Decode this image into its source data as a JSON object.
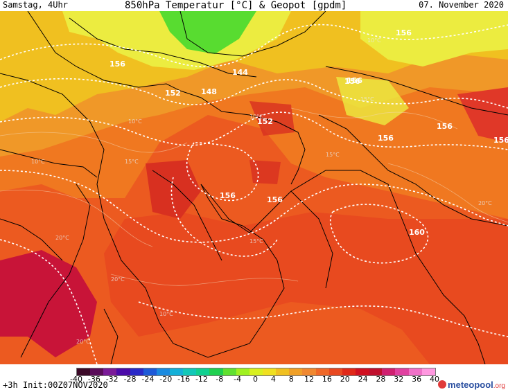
{
  "header": {
    "left": "Samstag, 4Uhr",
    "title": "850hPa Temperatur [°C] & Geopot [gpdm]",
    "right": "07. November 2020"
  },
  "footer": {
    "left": "+3h  Init:00Z07NOV2020",
    "brand": "meteopool",
    "brand_suffix": ".org",
    "brand_icon": "meteopool-logo-icon"
  },
  "scale": {
    "labels": [
      "-40",
      "-36",
      "-32",
      "-28",
      "-24",
      "-20",
      "-16",
      "-12",
      "-8",
      "-4",
      "0",
      "4",
      "8",
      "12",
      "16",
      "20",
      "24",
      "28",
      "32",
      "36",
      "40"
    ],
    "colors": [
      "#3c0a28",
      "#5a0c5a",
      "#7a1a98",
      "#4b0aa8",
      "#2a2ac8",
      "#1e5ad8",
      "#1a8ae0",
      "#14b0d8",
      "#12c8b8",
      "#10d090",
      "#20d050",
      "#60e030",
      "#a0f020",
      "#d8f020",
      "#f0e020",
      "#f0c020",
      "#f0a028",
      "#f08830",
      "#f06828",
      "#e84820",
      "#e02818",
      "#d01020",
      "#c0102e",
      "#d02070",
      "#e040a0",
      "#f070c8",
      "#ff98e0"
    ]
  },
  "map": {
    "colors": {
      "cool_green": "#58dc30",
      "yellow": "#ecec40",
      "yellow_orange": "#f0c020",
      "orange": "#f09828",
      "dark_orange": "#f07820",
      "red_orange": "#ec5a20",
      "red": "#e03828",
      "deep_red": "#c81438"
    },
    "geopot_labels": [
      "156",
      "156",
      "152",
      "148",
      "144",
      "152",
      "156",
      "156",
      "156",
      "156",
      "160",
      "156",
      "156",
      "156"
    ],
    "temp_labels": [
      "10°C",
      "10°C",
      "15°C",
      "10°C",
      "15°C",
      "10°C",
      "20°C",
      "20°C",
      "10°C",
      "15°C",
      "20°C",
      "15°C",
      "20°C"
    ]
  }
}
